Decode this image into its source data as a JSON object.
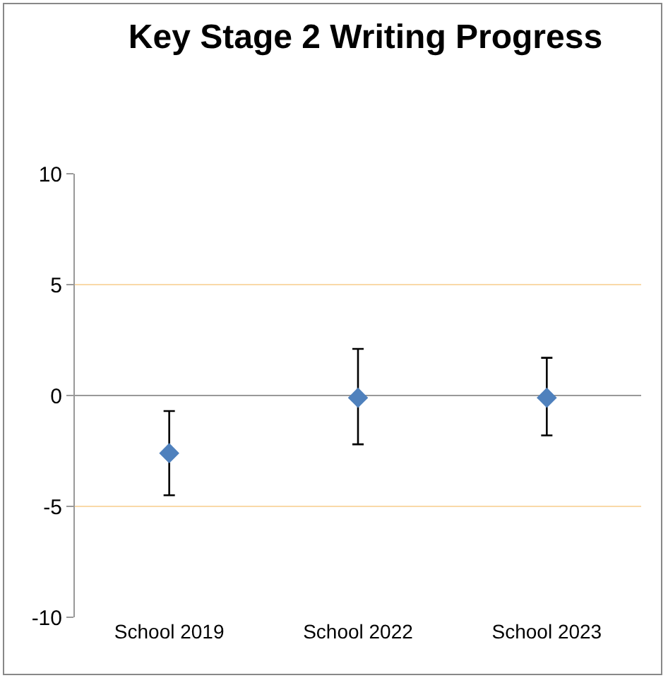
{
  "chart_data": {
    "type": "scatter",
    "title": "Key Stage 2 Writing Progress",
    "categories": [
      "School 2019",
      "School 2022",
      "School 2023"
    ],
    "values": [
      -2.6,
      -0.1,
      -0.1
    ],
    "errors": [
      [
        -4.5,
        -0.7
      ],
      [
        -2.2,
        2.1
      ],
      [
        -1.8,
        1.7
      ]
    ],
    "color": "#4f81bd",
    "marker": "diamond",
    "ylim": [
      -10,
      10
    ],
    "yticks": [
      -10,
      -5,
      0,
      5,
      10
    ],
    "grid": "y"
  }
}
